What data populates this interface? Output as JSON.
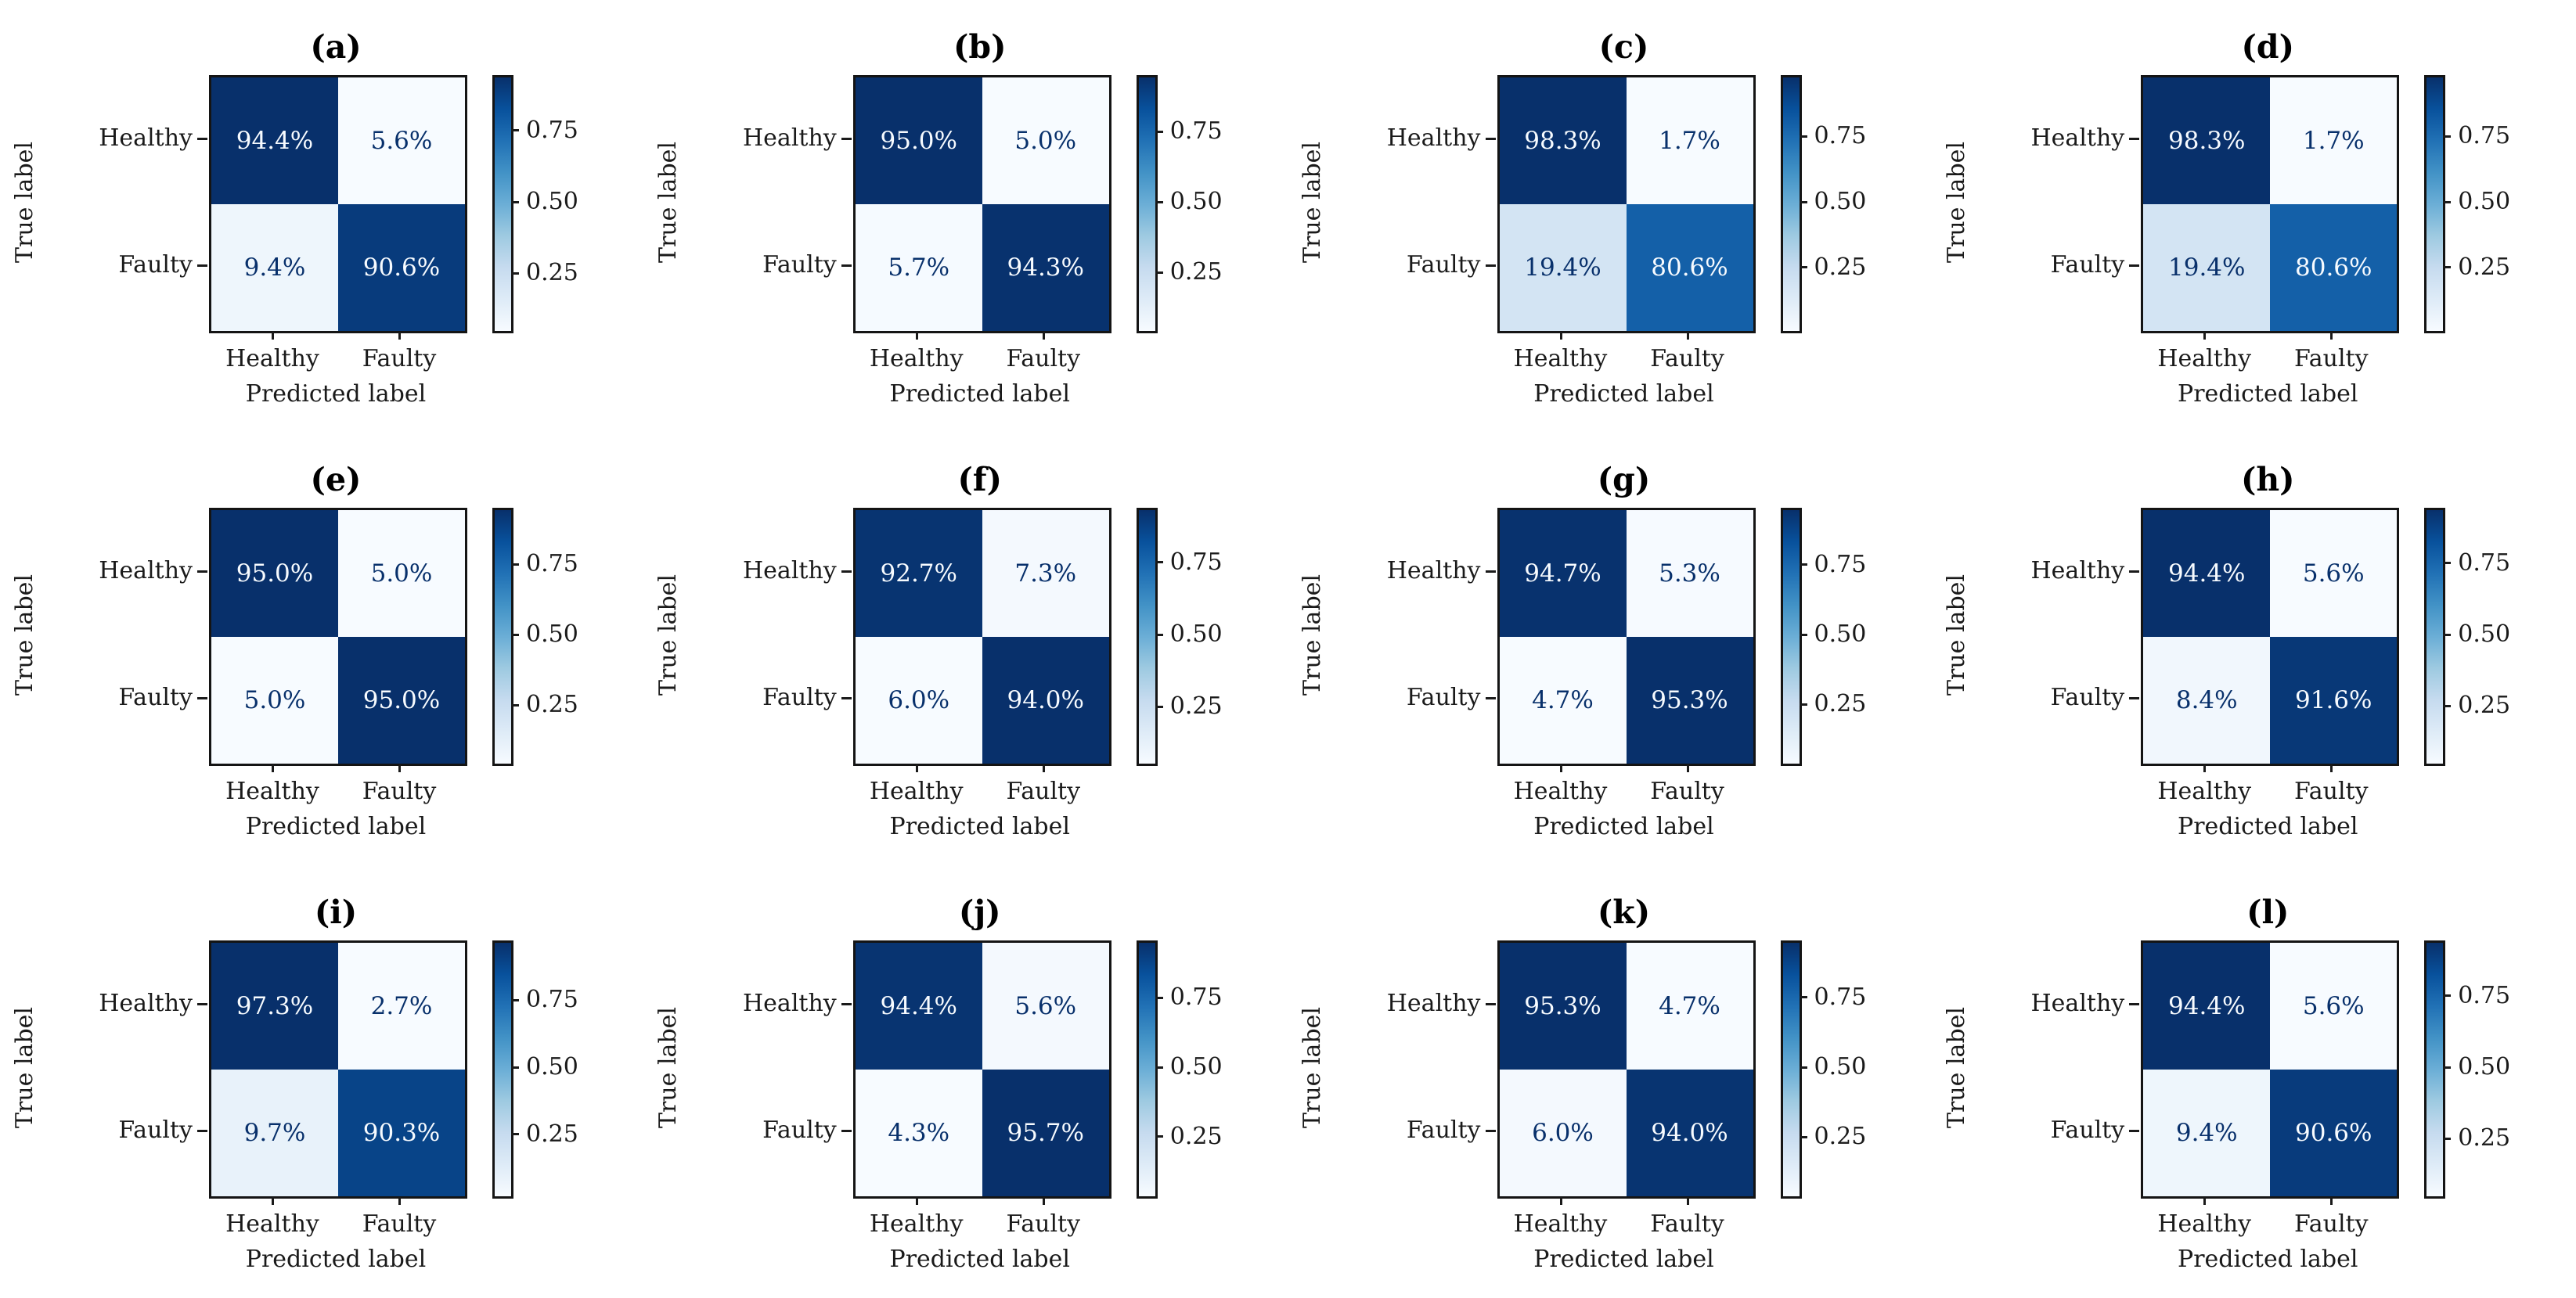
{
  "figure": {
    "background_color": "#ffffff",
    "text_color": "#1a1a1a",
    "colormap": {
      "name": "Blues",
      "anchors": [
        "#f7fbff",
        "#deebf7",
        "#c6dbef",
        "#9ecae1",
        "#6baed6",
        "#4292c6",
        "#2171b5",
        "#08519c",
        "#08306b"
      ],
      "cell_text_dark": "#08306b",
      "cell_text_light": "#f7fbff"
    },
    "shared": {
      "ylabel": "True label",
      "xlabel": "Predicted label",
      "y_categories": [
        "Healthy",
        "Faulty"
      ],
      "x_categories": [
        "Healthy",
        "Faulty"
      ],
      "colorbar_ticks": [
        0.25,
        0.5,
        0.75
      ],
      "colorbar_tick_labels": [
        "0.25",
        "0.50",
        "0.75"
      ]
    }
  },
  "chart_data": [
    {
      "type": "heatmap",
      "title": "(a)",
      "xlabel": "Predicted label",
      "ylabel": "True label",
      "x_categories": [
        "Healthy",
        "Faulty"
      ],
      "y_categories": [
        "Healthy",
        "Faulty"
      ],
      "values_percent": [
        [
          94.4,
          5.6
        ],
        [
          9.4,
          90.6
        ]
      ],
      "cell_labels": [
        [
          "94.4%",
          "5.6%"
        ],
        [
          "9.4%",
          "90.6%"
        ]
      ],
      "colorbar_ticks": [
        0.25,
        0.5,
        0.75
      ],
      "colormap": "Blues"
    },
    {
      "type": "heatmap",
      "title": "(b)",
      "xlabel": "Predicted label",
      "ylabel": "True label",
      "x_categories": [
        "Healthy",
        "Faulty"
      ],
      "y_categories": [
        "Healthy",
        "Faulty"
      ],
      "values_percent": [
        [
          95.0,
          5.0
        ],
        [
          5.7,
          94.3
        ]
      ],
      "cell_labels": [
        [
          "95.0%",
          "5.0%"
        ],
        [
          "5.7%",
          "94.3%"
        ]
      ],
      "colorbar_ticks": [
        0.25,
        0.5,
        0.75
      ],
      "colormap": "Blues"
    },
    {
      "type": "heatmap",
      "title": "(c)",
      "xlabel": "Predicted label",
      "ylabel": "True label",
      "x_categories": [
        "Healthy",
        "Faulty"
      ],
      "y_categories": [
        "Healthy",
        "Faulty"
      ],
      "values_percent": [
        [
          98.3,
          1.7
        ],
        [
          19.4,
          80.6
        ]
      ],
      "cell_labels": [
        [
          "98.3%",
          "1.7%"
        ],
        [
          "19.4%",
          "80.6%"
        ]
      ],
      "colorbar_ticks": [
        0.25,
        0.5,
        0.75
      ],
      "colormap": "Blues"
    },
    {
      "type": "heatmap",
      "title": "(d)",
      "xlabel": "Predicted label",
      "ylabel": "True label",
      "x_categories": [
        "Healthy",
        "Faulty"
      ],
      "y_categories": [
        "Healthy",
        "Faulty"
      ],
      "values_percent": [
        [
          98.3,
          1.7
        ],
        [
          19.4,
          80.6
        ]
      ],
      "cell_labels": [
        [
          "98.3%",
          "1.7%"
        ],
        [
          "19.4%",
          "80.6%"
        ]
      ],
      "colorbar_ticks": [
        0.25,
        0.5,
        0.75
      ],
      "colormap": "Blues"
    },
    {
      "type": "heatmap",
      "title": "(e)",
      "xlabel": "Predicted label",
      "ylabel": "True label",
      "x_categories": [
        "Healthy",
        "Faulty"
      ],
      "y_categories": [
        "Healthy",
        "Faulty"
      ],
      "values_percent": [
        [
          95.0,
          5.0
        ],
        [
          5.0,
          95.0
        ]
      ],
      "cell_labels": [
        [
          "95.0%",
          "5.0%"
        ],
        [
          "5.0%",
          "95.0%"
        ]
      ],
      "colorbar_ticks": [
        0.25,
        0.5,
        0.75
      ],
      "colormap": "Blues"
    },
    {
      "type": "heatmap",
      "title": "(f)",
      "xlabel": "Predicted label",
      "ylabel": "True label",
      "x_categories": [
        "Healthy",
        "Faulty"
      ],
      "y_categories": [
        "Healthy",
        "Faulty"
      ],
      "values_percent": [
        [
          92.7,
          7.3
        ],
        [
          6.0,
          94.0
        ]
      ],
      "cell_labels": [
        [
          "92.7%",
          "7.3%"
        ],
        [
          "6.0%",
          "94.0%"
        ]
      ],
      "colorbar_ticks": [
        0.25,
        0.5,
        0.75
      ],
      "colormap": "Blues"
    },
    {
      "type": "heatmap",
      "title": "(g)",
      "xlabel": "Predicted label",
      "ylabel": "True label",
      "x_categories": [
        "Healthy",
        "Faulty"
      ],
      "y_categories": [
        "Healthy",
        "Faulty"
      ],
      "values_percent": [
        [
          94.7,
          5.3
        ],
        [
          4.7,
          95.3
        ]
      ],
      "cell_labels": [
        [
          "94.7%",
          "5.3%"
        ],
        [
          "4.7%",
          "95.3%"
        ]
      ],
      "colorbar_ticks": [
        0.25,
        0.5,
        0.75
      ],
      "colormap": "Blues"
    },
    {
      "type": "heatmap",
      "title": "(h)",
      "xlabel": "Predicted label",
      "ylabel": "True label",
      "x_categories": [
        "Healthy",
        "Faulty"
      ],
      "y_categories": [
        "Healthy",
        "Faulty"
      ],
      "values_percent": [
        [
          94.4,
          5.6
        ],
        [
          8.4,
          91.6
        ]
      ],
      "cell_labels": [
        [
          "94.4%",
          "5.6%"
        ],
        [
          "8.4%",
          "91.6%"
        ]
      ],
      "colorbar_ticks": [
        0.25,
        0.5,
        0.75
      ],
      "colormap": "Blues"
    },
    {
      "type": "heatmap",
      "title": "(i)",
      "xlabel": "Predicted label",
      "ylabel": "True label",
      "x_categories": [
        "Healthy",
        "Faulty"
      ],
      "y_categories": [
        "Healthy",
        "Faulty"
      ],
      "values_percent": [
        [
          97.3,
          2.7
        ],
        [
          9.7,
          90.3
        ]
      ],
      "cell_labels": [
        [
          "97.3%",
          "2.7%"
        ],
        [
          "9.7%",
          "90.3%"
        ]
      ],
      "colorbar_ticks": [
        0.25,
        0.5,
        0.75
      ],
      "colormap": "Blues"
    },
    {
      "type": "heatmap",
      "title": "(j)",
      "xlabel": "Predicted label",
      "ylabel": "True label",
      "x_categories": [
        "Healthy",
        "Faulty"
      ],
      "y_categories": [
        "Healthy",
        "Faulty"
      ],
      "values_percent": [
        [
          94.4,
          5.6
        ],
        [
          4.3,
          95.7
        ]
      ],
      "cell_labels": [
        [
          "94.4%",
          "5.6%"
        ],
        [
          "4.3%",
          "95.7%"
        ]
      ],
      "colorbar_ticks": [
        0.25,
        0.5,
        0.75
      ],
      "colormap": "Blues"
    },
    {
      "type": "heatmap",
      "title": "(k)",
      "xlabel": "Predicted label",
      "ylabel": "True label",
      "x_categories": [
        "Healthy",
        "Faulty"
      ],
      "y_categories": [
        "Healthy",
        "Faulty"
      ],
      "values_percent": [
        [
          95.3,
          4.7
        ],
        [
          6.0,
          94.0
        ]
      ],
      "cell_labels": [
        [
          "95.3%",
          "4.7%"
        ],
        [
          "6.0%",
          "94.0%"
        ]
      ],
      "colorbar_ticks": [
        0.25,
        0.5,
        0.75
      ],
      "colormap": "Blues"
    },
    {
      "type": "heatmap",
      "title": "(l)",
      "xlabel": "Predicted label",
      "ylabel": "True label",
      "x_categories": [
        "Healthy",
        "Faulty"
      ],
      "y_categories": [
        "Healthy",
        "Faulty"
      ],
      "values_percent": [
        [
          94.4,
          5.6
        ],
        [
          9.4,
          90.6
        ]
      ],
      "cell_labels": [
        [
          "94.4%",
          "5.6%"
        ],
        [
          "9.4%",
          "90.6%"
        ]
      ],
      "colorbar_ticks": [
        0.25,
        0.5,
        0.75
      ],
      "colormap": "Blues"
    }
  ]
}
